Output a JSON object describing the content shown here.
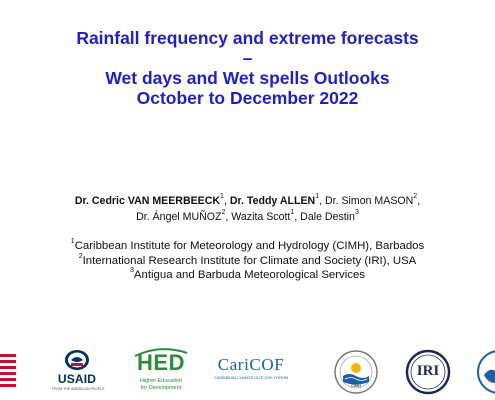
{
  "title": {
    "line1": "Rainfall frequency and extreme forecasts",
    "line2": "–",
    "line3": "Wet days and Wet spells Outlooks",
    "line4": "October to December 2022"
  },
  "authors": [
    {
      "name": "Dr. Cedric VAN MEERBEECK",
      "sup": "1",
      "bold": true,
      "sep": ", "
    },
    {
      "name": "Dr. Teddy ALLEN",
      "sup": "1",
      "bold": true,
      "sep": ", "
    },
    {
      "name": "Dr. Simon MASON",
      "sup": "2",
      "bold": false,
      "sep": ","
    },
    {
      "name": "Dr. Ángel MUÑOZ",
      "sup": "2",
      "bold": false,
      "sep": ", "
    },
    {
      "name": "Wazita Scott",
      "sup": "1",
      "bold": false,
      "sep": ", "
    },
    {
      "name": "Dale Destin",
      "sup": "3",
      "bold": false,
      "sep": ""
    }
  ],
  "affiliations": [
    {
      "num": "1",
      "text": "Caribbean Institute for Meteorology and Hydrology (CIMH), Barbados"
    },
    {
      "num": "2",
      "text": "International Research Institute for Climate and Society (IRI), USA"
    },
    {
      "num": "3",
      "text": "Antigua and Barbuda Meteorological Services"
    }
  ],
  "logos": {
    "usaid": {
      "name": "USAID",
      "tagline": "FROM THE AMERICAN PEOPLE"
    },
    "hed": {
      "name": "HED",
      "tagline1": "Higher Education",
      "tagline2": "for Development"
    },
    "caricof": {
      "name": "CariCOF",
      "tagline": "CARIBBEAN CLIMATE OUTLOOK FORUM"
    },
    "cimh": {
      "name": "CIMH"
    },
    "iri": {
      "name": "IRI"
    }
  },
  "colors": {
    "title": "#1f1fd0",
    "flag_red": "#c8102e",
    "usaid_blue": "#002f6c",
    "hed_green": "#2e8b3e",
    "caricof_blue": "#1a5fa8"
  }
}
